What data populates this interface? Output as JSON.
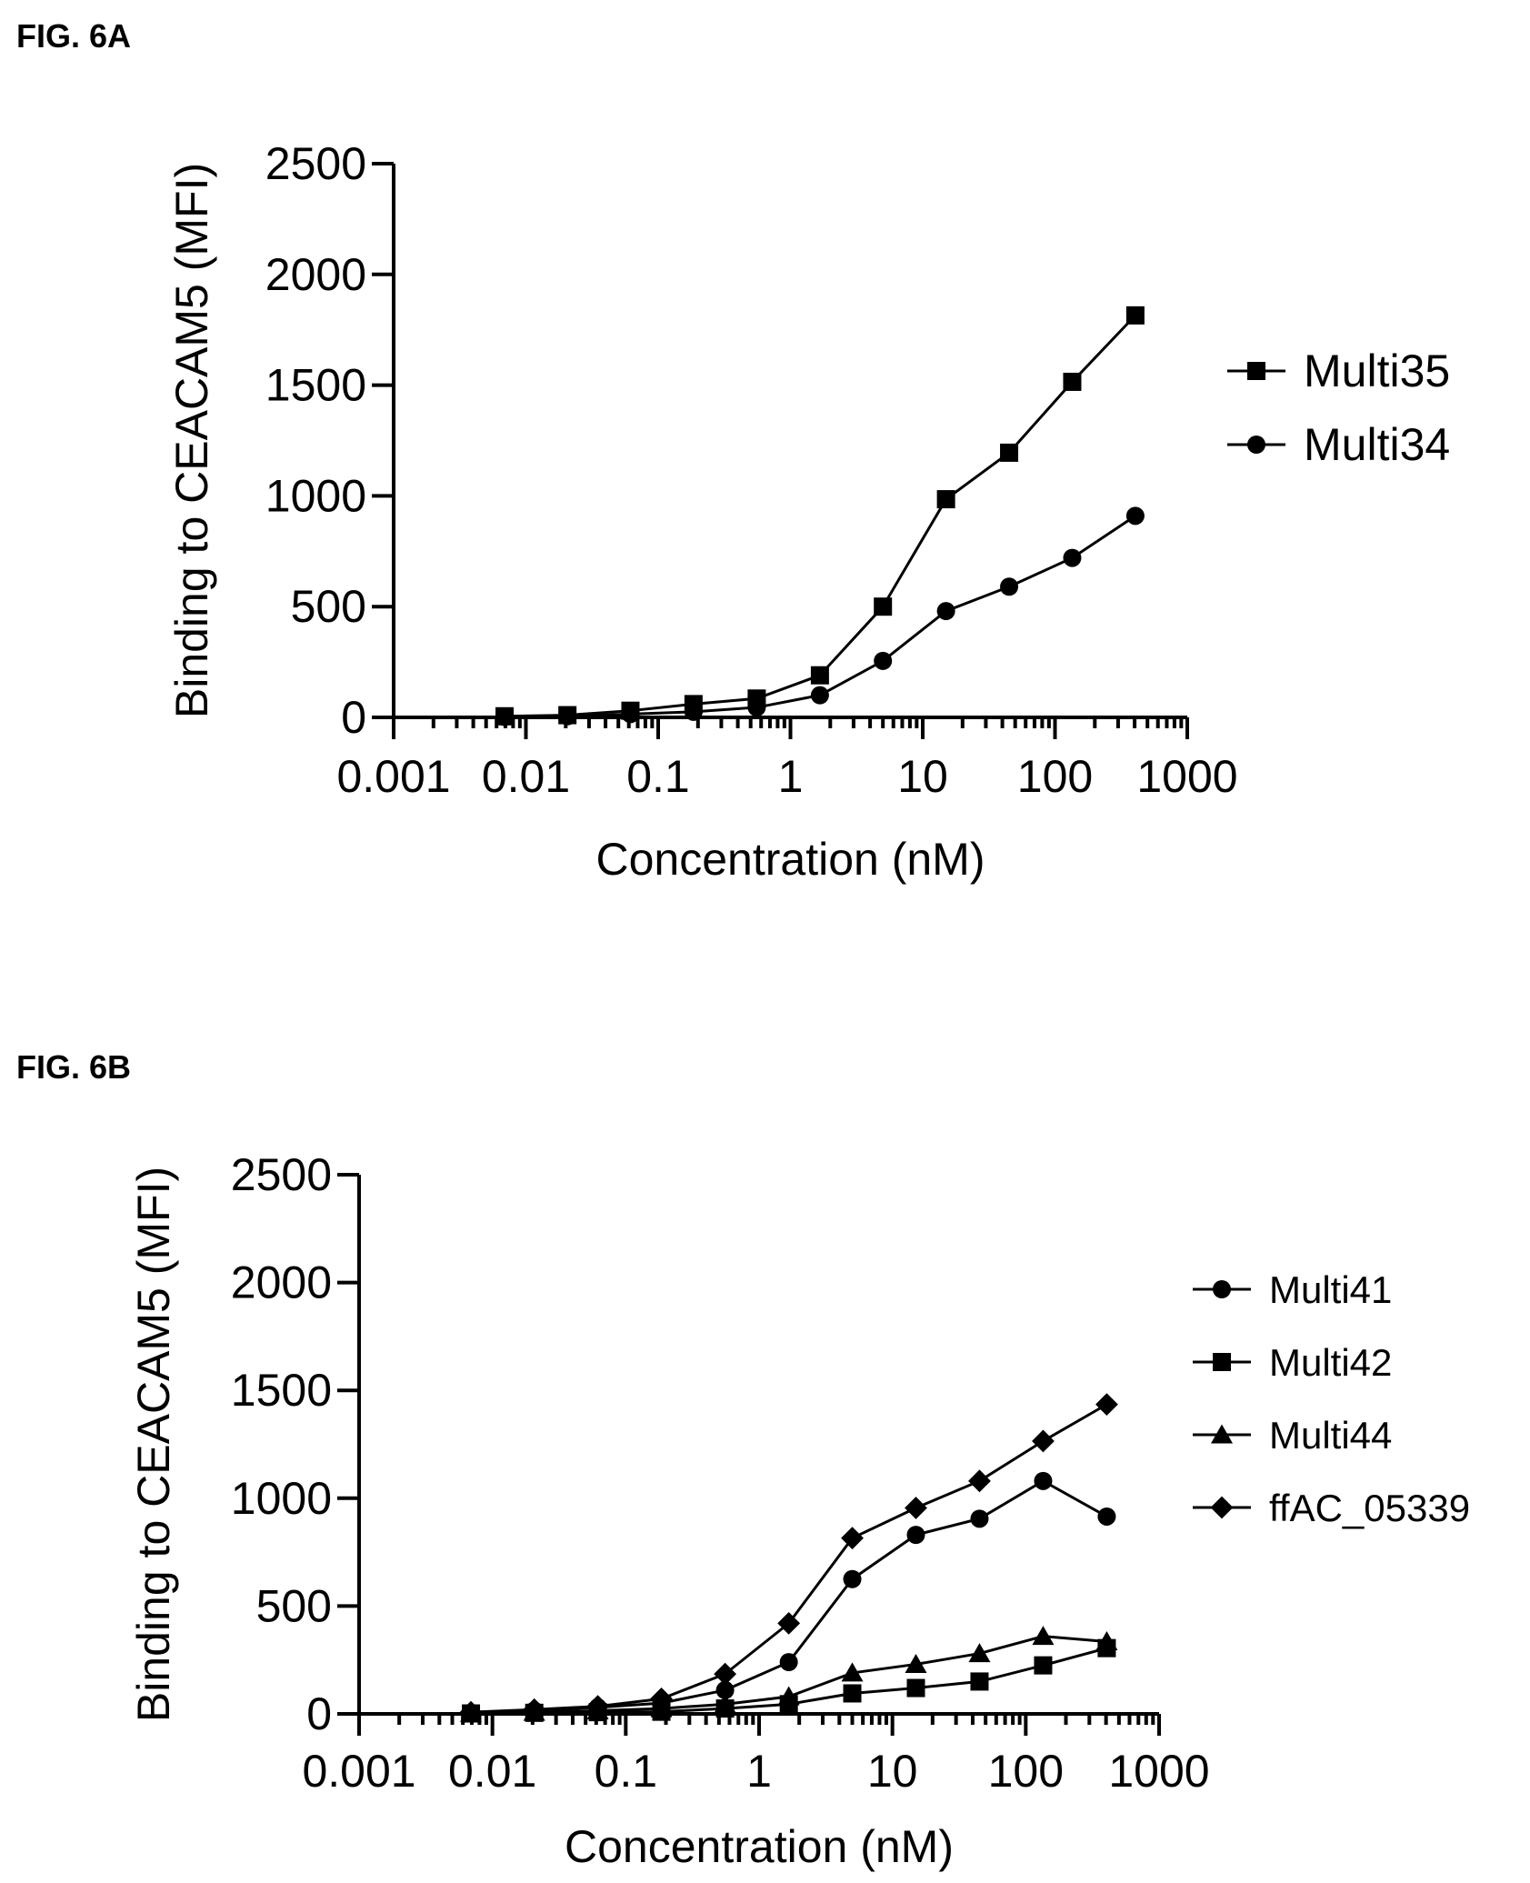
{
  "figures": [
    {
      "label": "FIG. 6A",
      "chart_data": {
        "type": "line",
        "title": "",
        "xlabel": "Concentration (nM)",
        "ylabel": "Binding to CEACAM5 (MFI)",
        "xscale": "log",
        "xlim": [
          0.001,
          1000
        ],
        "ylim": [
          0,
          2500
        ],
        "x_ticks": [
          "0.001",
          "0.01",
          "0.1",
          "1",
          "10",
          "100",
          "1000"
        ],
        "y_ticks": [
          "0",
          "500",
          "1000",
          "1500",
          "2000",
          "2500"
        ],
        "grid": false,
        "legend_position": "right",
        "x": [
          0.0069,
          0.0206,
          0.0617,
          0.185,
          0.556,
          1.67,
          5,
          15,
          45,
          135,
          405
        ],
        "series": [
          {
            "name": "Multi35",
            "marker": "square",
            "values": [
              5,
              10,
              30,
              60,
              85,
              190,
              500,
              985,
              1195,
              1515,
              1815
            ]
          },
          {
            "name": "Multi34",
            "marker": "circle",
            "values": [
              2,
              5,
              15,
              25,
              45,
              100,
              255,
              480,
              590,
              720,
              910
            ]
          }
        ]
      }
    },
    {
      "label": "FIG. 6B",
      "chart_data": {
        "type": "line",
        "title": "",
        "xlabel": "Concentration (nM)",
        "ylabel": "Binding to CEACAM5 (MFI)",
        "xscale": "log",
        "xlim": [
          0.001,
          1000
        ],
        "ylim": [
          0,
          2500
        ],
        "x_ticks": [
          "0.001",
          "0.01",
          "0.1",
          "1",
          "10",
          "100",
          "1000"
        ],
        "y_ticks": [
          "0",
          "500",
          "1000",
          "1500",
          "2000",
          "2500"
        ],
        "grid": false,
        "legend_position": "right",
        "x": [
          0.0069,
          0.0206,
          0.0617,
          0.185,
          0.556,
          1.67,
          5,
          15,
          45,
          135,
          405
        ],
        "series": [
          {
            "name": "Multi41",
            "marker": "circle",
            "values": [
              5,
              15,
              30,
              50,
              110,
              240,
              625,
              830,
              905,
              1080,
              915
            ]
          },
          {
            "name": "Multi42",
            "marker": "square",
            "values": [
              2,
              5,
              8,
              10,
              25,
              45,
              95,
              120,
              150,
              225,
              305
            ]
          },
          {
            "name": "Multi44",
            "marker": "triangle",
            "values": [
              3,
              8,
              15,
              25,
              45,
              80,
              190,
              230,
              280,
              360,
              335
            ]
          },
          {
            "name": "ffAC_05339",
            "marker": "diamond",
            "values": [
              8,
              20,
              35,
              70,
              185,
              420,
              815,
              955,
              1080,
              1265,
              1435
            ]
          }
        ]
      }
    }
  ]
}
